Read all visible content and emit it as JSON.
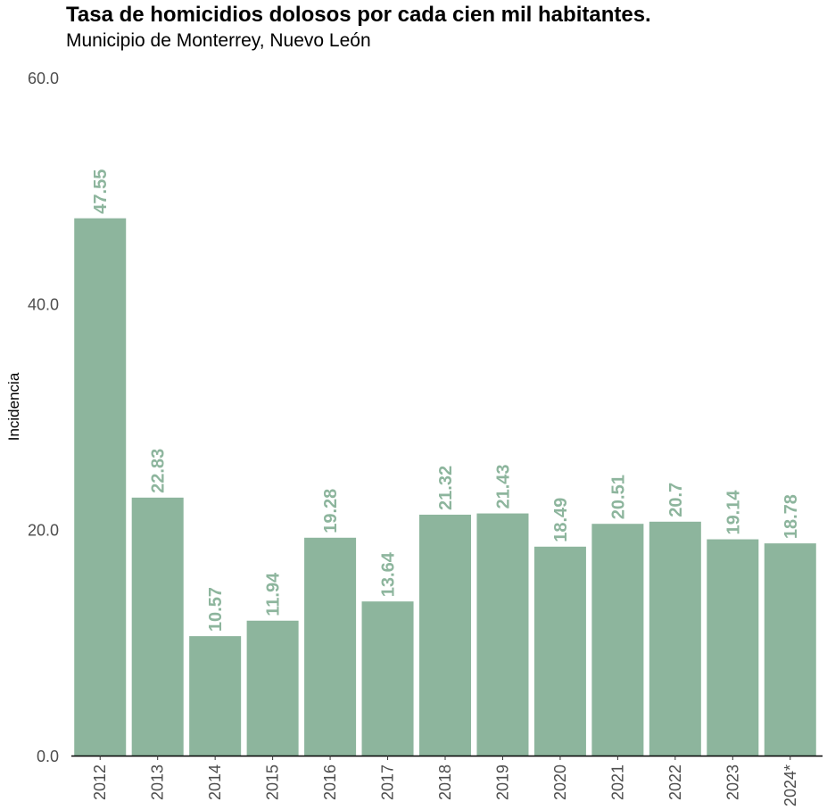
{
  "chart_data": {
    "type": "bar",
    "title": "Tasa de homicidios dolosos por cada cien mil habitantes.",
    "subtitle": "Municipio de Monterrey, Nuevo León",
    "xlabel": "",
    "ylabel": "Incidencia",
    "categories": [
      "2012",
      "2013",
      "2014",
      "2015",
      "2016",
      "2017",
      "2018",
      "2019",
      "2020",
      "2021",
      "2022",
      "2023",
      "2024*"
    ],
    "values": [
      47.55,
      22.83,
      10.57,
      11.94,
      19.28,
      13.64,
      21.32,
      21.43,
      18.49,
      20.51,
      20.7,
      19.14,
      18.78
    ],
    "data_labels": [
      "47.55",
      "22.83",
      "10.57",
      "11.94",
      "19.28",
      "13.64",
      "21.32",
      "21.43",
      "18.49",
      "20.51",
      "20.7",
      "19.14",
      "18.78"
    ],
    "ylim": [
      0,
      60
    ],
    "yticks": [
      0,
      20,
      40,
      60
    ],
    "ytick_labels": [
      "0.0",
      "20.0",
      "40.0",
      "60.0"
    ],
    "grid": false,
    "legend": "none",
    "bar_color": "#8db59d",
    "label_color": "#8db59d",
    "axis_color": "#000000"
  }
}
